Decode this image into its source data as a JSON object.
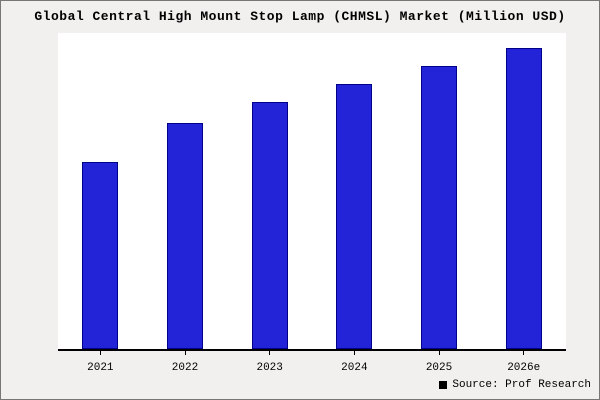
{
  "title": "Global Central High Mount Stop Lamp (CHMSL) Market (Million USD)",
  "source": {
    "label": "Source: Prof Research"
  },
  "colors": {
    "background": "#f1f0ee",
    "plot_background": "#ffffff",
    "bar_fill": "#2323d8",
    "bar_border": "#00008b",
    "axis": "#000000"
  },
  "chart_data": {
    "type": "bar",
    "title": "Global Central High Mount Stop Lamp (CHMSL) Market (Million USD)",
    "categories": [
      "2021",
      "2022",
      "2023",
      "2024",
      "2025",
      "2026e"
    ],
    "values": [
      62,
      75,
      82,
      88,
      94,
      100
    ],
    "xlabel": "",
    "ylabel": "",
    "ylim": [
      0,
      105
    ],
    "grid": false,
    "legend_position": "none",
    "y_axis_labels_visible": false,
    "annotation": "Source: Prof Research"
  }
}
